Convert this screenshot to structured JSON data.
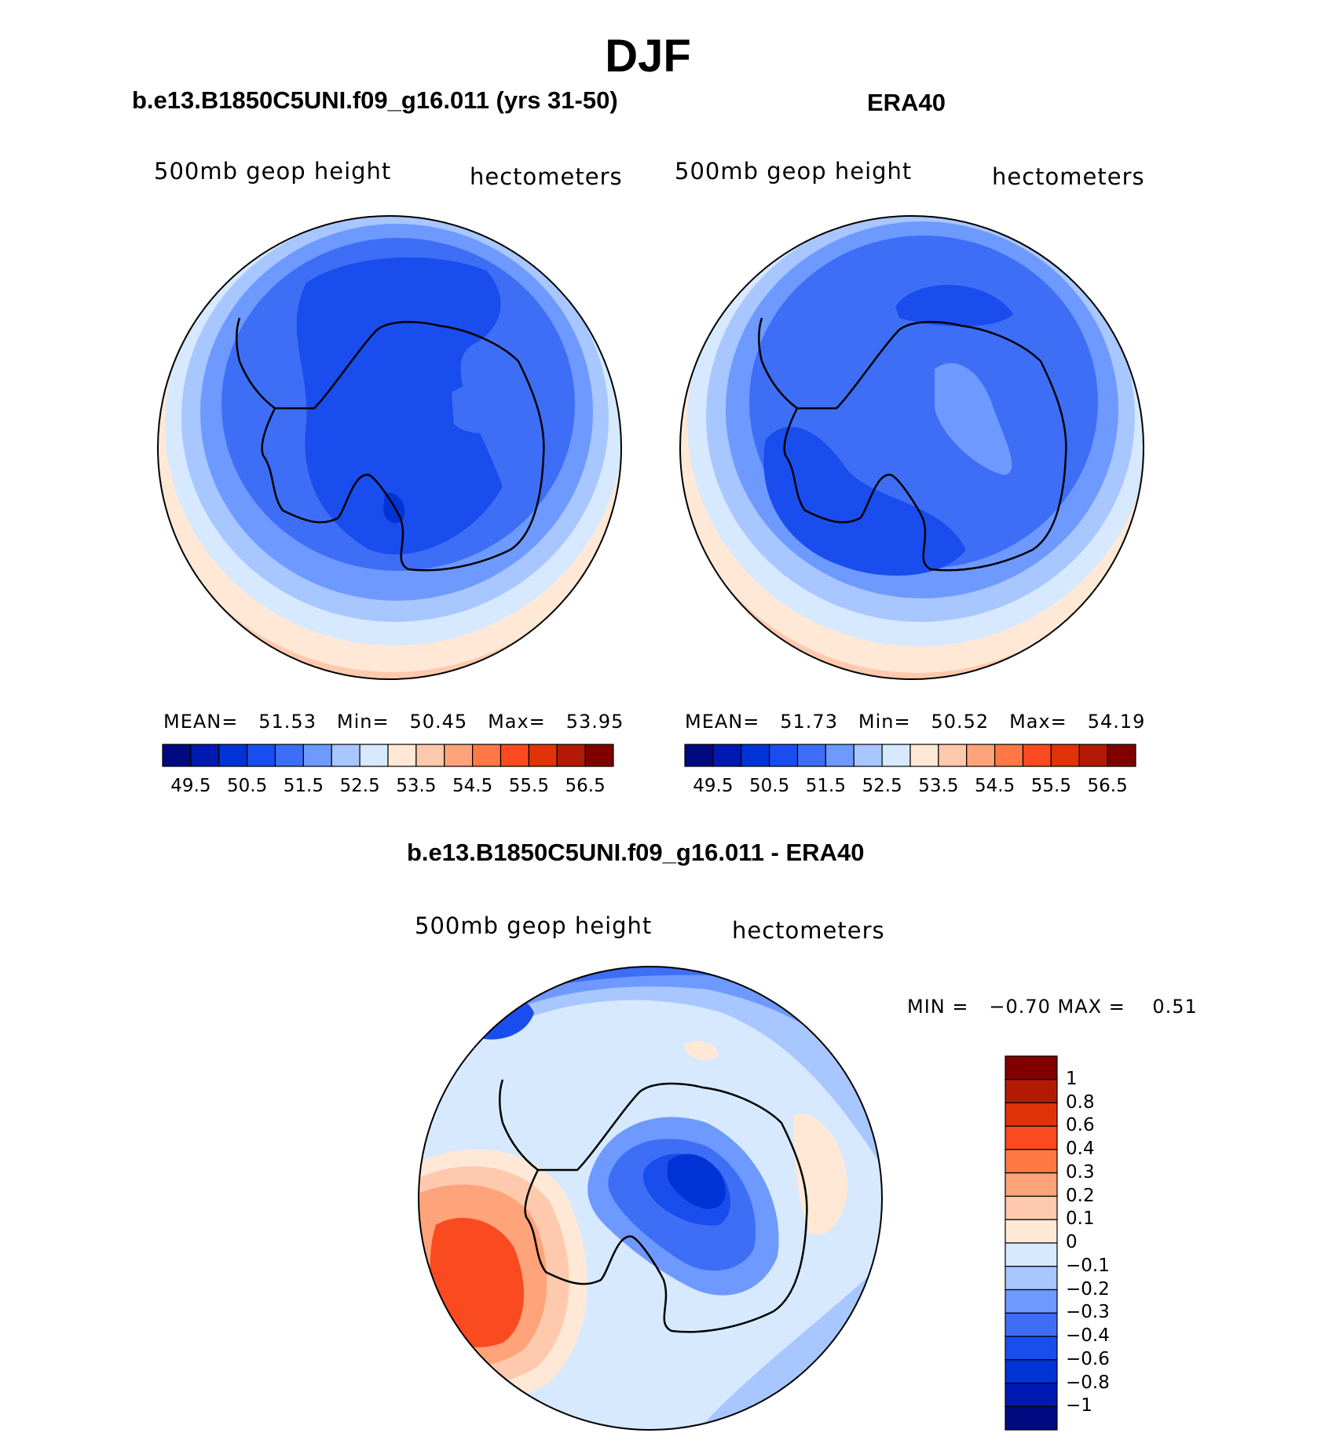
{
  "figure": {
    "title": "DJF"
  },
  "colors": {
    "sequential": [
      "#000a80",
      "#0019b0",
      "#0033d6",
      "#1a4ded",
      "#3d6ef5",
      "#6e99ff",
      "#a8c6ff",
      "#d6e9ff",
      "#ffe8d6",
      "#ffc9ad",
      "#ffa37a",
      "#ff7845",
      "#fa4a1f",
      "#e03308",
      "#b31a05",
      "#800000"
    ],
    "diff": [
      "#000a80",
      "#0019b0",
      "#0033d6",
      "#1a4ded",
      "#3d6ef5",
      "#6e99ff",
      "#a8c6ff",
      "#d6e9ff",
      "#ffe8d6",
      "#ffc9ad",
      "#ffa37a",
      "#ff7845",
      "#fa4a1f",
      "#e03308",
      "#b31a05",
      "#800000"
    ]
  },
  "panels": [
    {
      "title": "b.e13.B1850C5UNI.f09_g16.011 (yrs 31-50)",
      "variable": "500mb  geop  height",
      "units": "hectometers",
      "stats": {
        "mean_label": "MEAN=",
        "mean": "51.53",
        "min_label": "Min=",
        "min": "50.45",
        "max_label": "Max=",
        "max": "53.95"
      }
    },
    {
      "title": "ERA40",
      "variable": "500mb  geop  height",
      "units": "hectometers",
      "stats": {
        "mean_label": "MEAN=",
        "mean": "51.73",
        "min_label": "Min=",
        "min": "50.52",
        "max_label": "Max=",
        "max": "54.19"
      }
    },
    {
      "title": "b.e13.B1850C5UNI.f09_g16.011 - ERA40",
      "variable": "500mb  geop  height",
      "units": "hectometers",
      "minmax": "MIN =   −0.70 MAX =    0.51"
    }
  ],
  "colorbar_labels": [
    "49.5",
    "50.5",
    "51.5",
    "52.5",
    "53.5",
    "54.5",
    "55.5",
    "56.5"
  ],
  "diff_colorbar_labels": [
    "1",
    "0.8",
    "0.6",
    "0.4",
    "0.3",
    "0.2",
    "0.1",
    "0",
    "−0.1",
    "−0.2",
    "−0.3",
    "−0.4",
    "−0.6",
    "−0.8",
    "−1"
  ]
}
